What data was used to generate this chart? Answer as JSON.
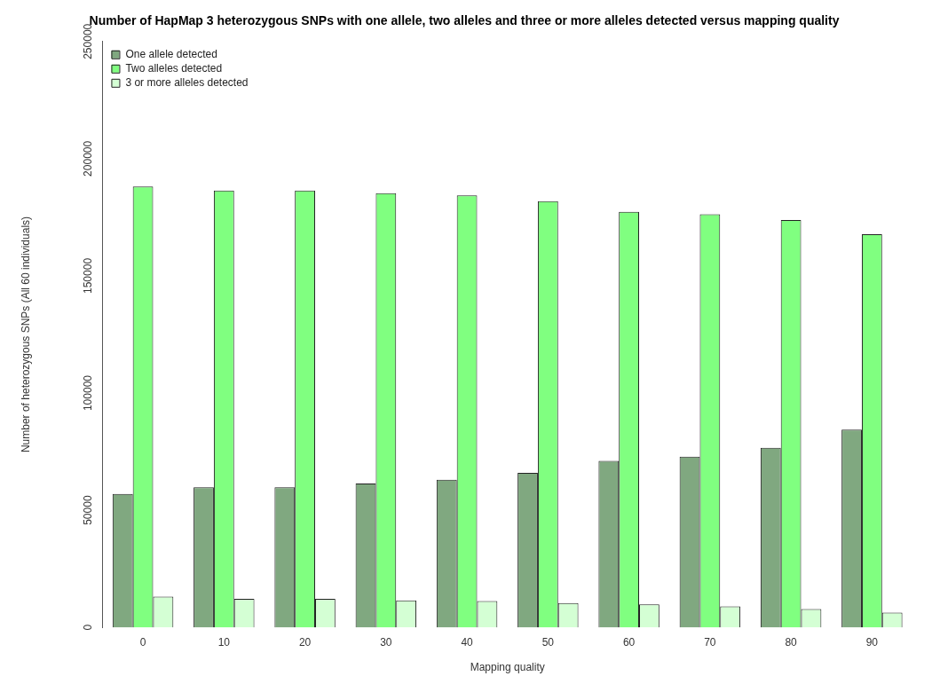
{
  "chart_data": {
    "type": "bar",
    "title": "Number of HapMap 3 heterozygous SNPs with one allele, two alleles and three or more alleles detected versus mapping quality",
    "xlabel": "Mapping quality",
    "ylabel": "Number of heterozygous SNPs (All 60 individuals)",
    "categories": [
      "0",
      "10",
      "20",
      "30",
      "40",
      "50",
      "60",
      "70",
      "80",
      "90"
    ],
    "series": [
      {
        "name": "One allele detected",
        "color": "#80a880",
        "values": [
          57000,
          59800,
          59800,
          61400,
          63000,
          65900,
          71100,
          72900,
          76600,
          84400
        ]
      },
      {
        "name": "Two alleles detected",
        "color": "#80ff80",
        "values": [
          188100,
          186400,
          186400,
          185300,
          184300,
          181900,
          177300,
          176300,
          173800,
          167800
        ]
      },
      {
        "name": "3 or more alleles detected",
        "color": "#d4ffd4",
        "values": [
          13100,
          12200,
          12200,
          11500,
          11200,
          10400,
          9800,
          9000,
          7800,
          6300
        ]
      }
    ],
    "ylim": [
      0,
      250000
    ],
    "yticks": [
      0,
      50000,
      100000,
      150000,
      200000,
      250000
    ],
    "grid": false,
    "legend": "top left"
  }
}
